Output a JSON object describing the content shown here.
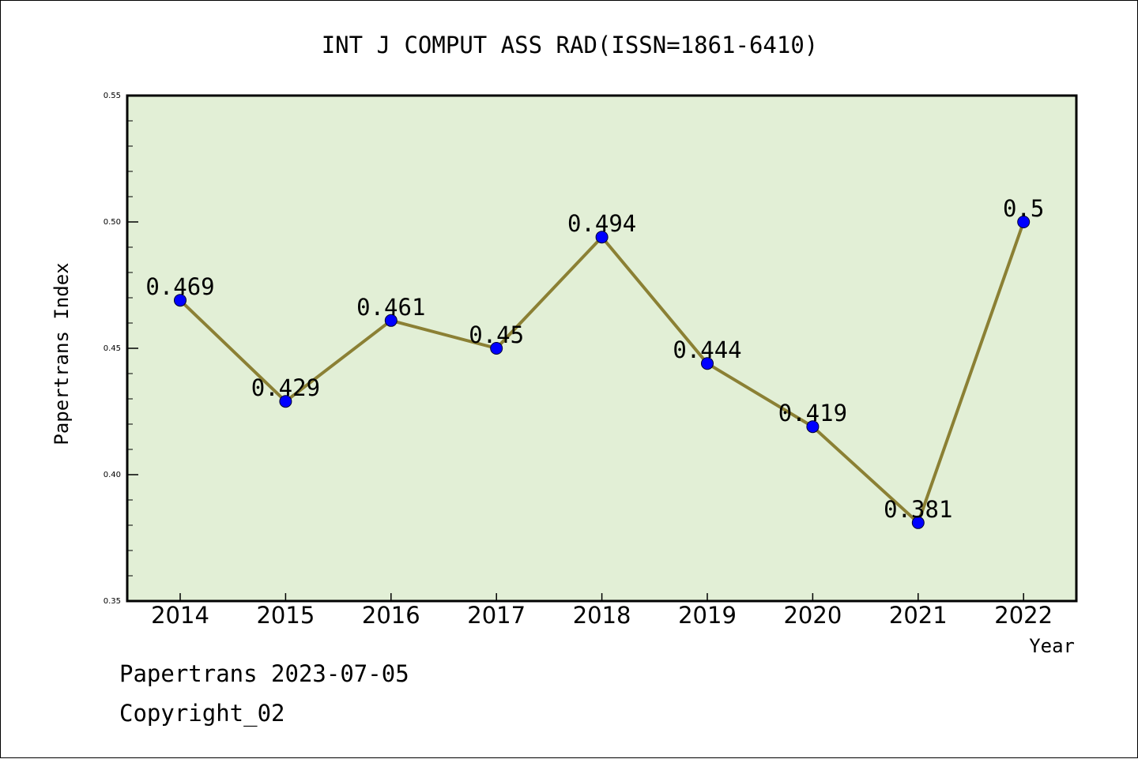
{
  "chart_data": {
    "type": "line",
    "title": "INT J COMPUT ASS RAD(ISSN=1861-6410)",
    "xlabel": "Year",
    "ylabel": "Papertrans Index",
    "x": [
      "2014",
      "2015",
      "2016",
      "2017",
      "2018",
      "2019",
      "2020",
      "2021",
      "2022"
    ],
    "series": [
      {
        "values": [
          0.469,
          0.429,
          0.461,
          0.45,
          0.494,
          0.444,
          0.419,
          0.381,
          0.5
        ],
        "labels": [
          "0.469",
          "0.429",
          "0.461",
          "0.45",
          "0.494",
          "0.444",
          "0.419",
          "0.381",
          "0.5"
        ]
      }
    ],
    "ylim": [
      0.35,
      0.55
    ],
    "yticks": [
      0.35,
      0.4,
      0.45,
      0.5,
      0.55
    ],
    "ytick_labels": [
      "0.35",
      "0.40",
      "0.45",
      "0.50",
      "0.55"
    ],
    "grid": false,
    "legend": "none",
    "colors": {
      "plot_background": "#e2efd6",
      "line": "#8b8034",
      "marker": "#0000ff"
    }
  },
  "footer": {
    "line1": "Papertrans 2023-07-05",
    "line2": "Copyright_02"
  }
}
